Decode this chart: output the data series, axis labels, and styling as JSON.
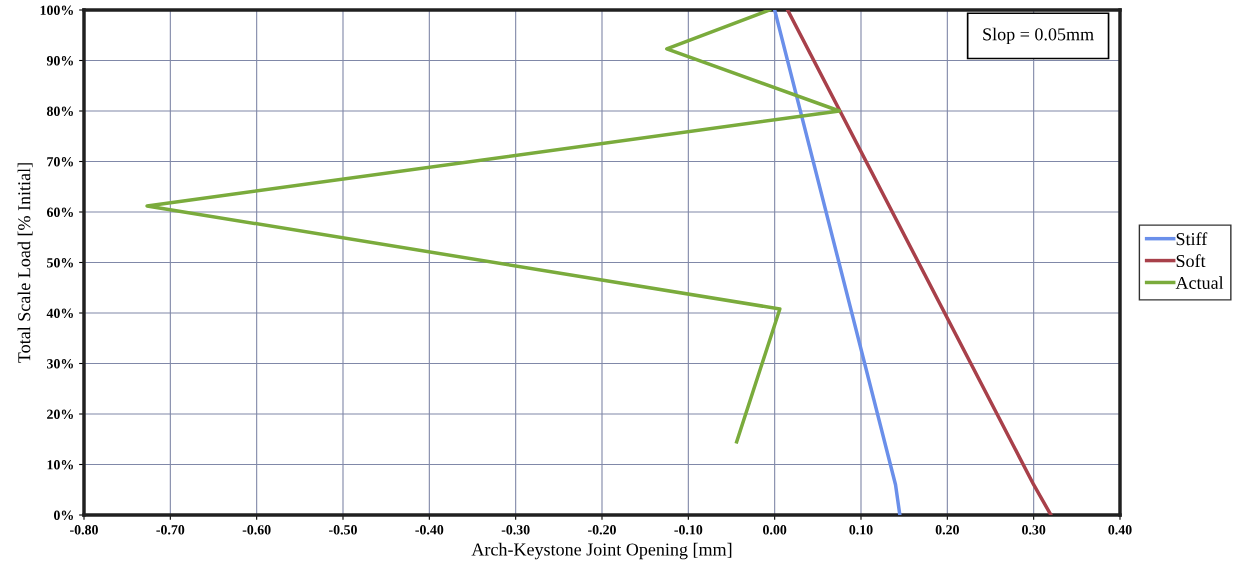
{
  "chart_data": {
    "type": "line",
    "xlabel": "Arch-Keystone Joint Opening [mm]",
    "ylabel": "Total Scale Load [% Initial]",
    "xlim": [
      -0.8,
      0.4
    ],
    "ylim": [
      0,
      100
    ],
    "xticks": [
      {
        "value": -0.8,
        "label": "-0.80"
      },
      {
        "value": -0.7,
        "label": "-0.70"
      },
      {
        "value": -0.6,
        "label": "-0.60"
      },
      {
        "value": -0.5,
        "label": "-0.50"
      },
      {
        "value": -0.4,
        "label": "-0.40"
      },
      {
        "value": -0.3,
        "label": "-0.30"
      },
      {
        "value": -0.2,
        "label": "-0.20"
      },
      {
        "value": -0.1,
        "label": "-0.10"
      },
      {
        "value": 0,
        "label": "0.00"
      },
      {
        "value": 0.1,
        "label": "0.10"
      },
      {
        "value": 0.2,
        "label": "0.20"
      },
      {
        "value": 0.3,
        "label": "0.30"
      },
      {
        "value": 0.4,
        "label": "0.40"
      }
    ],
    "yticks": [
      {
        "value": 0,
        "label": "0%"
      },
      {
        "value": 10,
        "label": "10%"
      },
      {
        "value": 20,
        "label": "20%"
      },
      {
        "value": 30,
        "label": "30%"
      },
      {
        "value": 40,
        "label": "40%"
      },
      {
        "value": 50,
        "label": "50%"
      },
      {
        "value": 60,
        "label": "60%"
      },
      {
        "value": 70,
        "label": "70%"
      },
      {
        "value": 80,
        "label": "80%"
      },
      {
        "value": 90,
        "label": "90%"
      },
      {
        "value": 100,
        "label": "100%"
      }
    ],
    "grid": true,
    "legend": "right",
    "marker": "none",
    "line_style": "solid",
    "annotations": [
      "Slop = 0.05mm"
    ],
    "series": [
      {
        "name": "Stiff",
        "color": "#6a8fea",
        "x": [
          0.0,
          0.14,
          0.145
        ],
        "values": [
          100,
          6,
          0
        ]
      },
      {
        "name": "Soft",
        "color": "#a8404a",
        "x": [
          0.015,
          0.3,
          0.32
        ],
        "values": [
          100,
          6,
          0
        ]
      },
      {
        "name": "Actual",
        "color": "#7aab3c",
        "x": [
          -0.044,
          0.006,
          -0.727,
          0.075,
          -0.125,
          -0.006
        ],
        "values": [
          14.5,
          40.8,
          61.2,
          80,
          92.3,
          100
        ]
      }
    ]
  }
}
